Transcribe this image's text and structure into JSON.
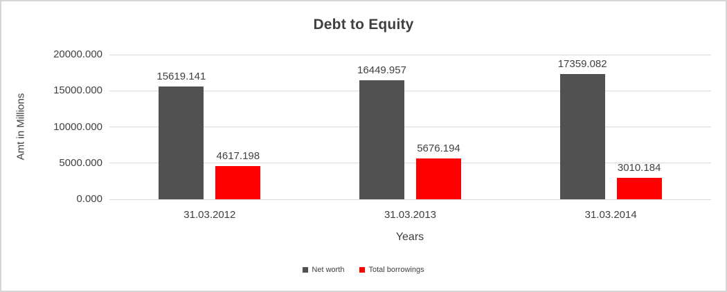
{
  "chart_data": {
    "type": "bar",
    "title": "Debt to Equity",
    "xlabel": "Years",
    "ylabel": "Amt in Millions",
    "categories": [
      "31.03.2012",
      "31.03.2013",
      "31.03.2014"
    ],
    "series": [
      {
        "name": "Net worth",
        "color": "#515151",
        "values": [
          15619.141,
          16449.957,
          17359.082
        ]
      },
      {
        "name": "Total borrowings",
        "color": "#ff0000",
        "values": [
          4617.198,
          5676.194,
          3010.184
        ]
      }
    ],
    "value_labels": [
      [
        "15619.141",
        "16449.957",
        "17359.082"
      ],
      [
        "4617.198",
        "5676.194",
        "3010.184"
      ]
    ],
    "ylim": [
      0,
      20000
    ],
    "ytick_step": 5000,
    "ytick_labels": [
      "0.000",
      "5000.000",
      "10000.000",
      "15000.000",
      "20000.000"
    ],
    "grid": true,
    "legend_position": "bottom",
    "colors": {
      "gridline": "#d9d9d9",
      "axis_text": "#404040",
      "title_text": "#3f3f3f",
      "frame_border": "#d5d5d5",
      "background": "#ffffff"
    }
  }
}
